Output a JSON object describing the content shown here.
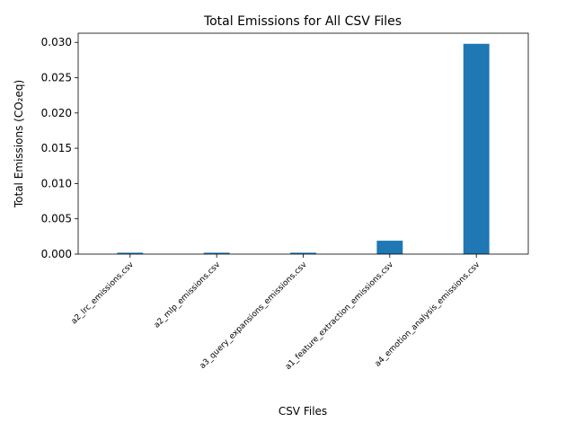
{
  "chart_data": {
    "type": "bar",
    "title": "Total Emissions for All CSV Files",
    "xlabel": "CSV Files",
    "ylabel": "Total Emissions (CO₂eq)",
    "categories": [
      "a2_lrc_emissions.csv",
      "a2_mlp_emissions.csv",
      "a3_query_expansions_emissions.csv",
      "a1_feature_extraction_emissions.csv",
      "a4_emotion_analysis_emissions.csv"
    ],
    "values": [
      0.0002,
      0.0002,
      0.0002,
      0.0019,
      0.0298
    ],
    "ylim": [
      0,
      0.0313
    ],
    "yticks": [
      0.0,
      0.005,
      0.01,
      0.015,
      0.02,
      0.025,
      0.03
    ],
    "ytick_labels": [
      "0.000",
      "0.005",
      "0.010",
      "0.015",
      "0.020",
      "0.025",
      "0.030"
    ],
    "bar_color": "#1f77b4",
    "grid": false,
    "legend": "none"
  }
}
